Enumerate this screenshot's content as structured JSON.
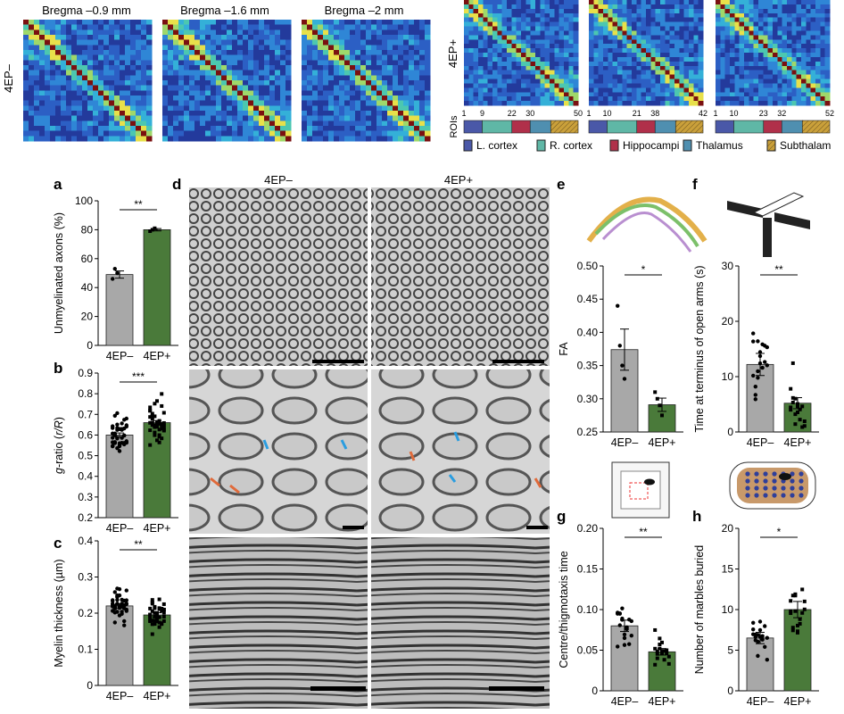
{
  "connectivity": {
    "left_titles": [
      "Bregma –0.9 mm",
      "Bregma –1.6 mm",
      "Bregma –2 mm"
    ],
    "left_row_label": "4EP–",
    "right_row_label": "4EP+",
    "rois_label": "ROIs",
    "roi_ticks": [
      [
        "1",
        "9",
        "22",
        "30",
        "50"
      ],
      [
        "1",
        "10",
        "21",
        "38",
        "42"
      ],
      [
        "1",
        "10",
        "23",
        "32",
        "52"
      ]
    ],
    "legend": [
      {
        "label": "L. cortex",
        "color": "#4a58a8"
      },
      {
        "label": "R. cortex",
        "color": "#5fb7a6"
      },
      {
        "label": "Hippocampi",
        "color": "#b0304a"
      },
      {
        "label": "Thalamus",
        "color": "#4f8fb0"
      },
      {
        "label": "Subthalam",
        "color": "#caa03a"
      }
    ]
  },
  "panel_letters": {
    "a": "a",
    "b": "b",
    "c": "c",
    "d": "d",
    "e": "e",
    "f": "f",
    "g": "g",
    "h": "h"
  },
  "em_panel": {
    "col_left": "4EP–",
    "col_right": "4EP+"
  },
  "chart_data": [
    {
      "id": "a",
      "type": "bar",
      "ylabel": "Unmyelinated axons (%)",
      "categories": [
        "4EP–",
        "4EP+"
      ],
      "values": [
        49,
        80
      ],
      "errors": [
        2.5,
        0.8
      ],
      "ylim": [
        0,
        100
      ],
      "yticks": [
        "0",
        "20",
        "40",
        "60",
        "80",
        "100"
      ],
      "significance": "**",
      "colors": [
        "#a8a8a8",
        "#4a7a3a"
      ],
      "points": [
        [
          46,
          53,
          50
        ],
        [
          79,
          80,
          81
        ]
      ]
    },
    {
      "id": "b",
      "type": "bar",
      "ylabel": "g-ratio (r/R)",
      "categories": [
        "4EP–",
        "4EP+"
      ],
      "values": [
        0.6,
        0.66
      ],
      "errors": [
        0.01,
        0.01
      ],
      "ylim": [
        0.2,
        0.9
      ],
      "yticks": [
        "0.2",
        "0.3",
        "0.4",
        "0.5",
        "0.6",
        "0.7",
        "0.8",
        "0.9"
      ],
      "significance": "***",
      "colors": [
        "#a8a8a8",
        "#4a7a3a"
      ]
    },
    {
      "id": "c",
      "type": "bar",
      "ylabel": "Myelin thickness (µm)",
      "categories": [
        "4EP–",
        "4EP+"
      ],
      "values": [
        0.22,
        0.195
      ],
      "errors": [
        0.006,
        0.006
      ],
      "ylim": [
        0,
        0.4
      ],
      "yticks": [
        "0",
        "0.1",
        "0.2",
        "0.3",
        "0.4"
      ],
      "significance": "**",
      "colors": [
        "#a8a8a8",
        "#4a7a3a"
      ]
    },
    {
      "id": "e",
      "type": "bar",
      "ylabel": "FA",
      "categories": [
        "4EP–",
        "4EP+"
      ],
      "values": [
        0.374,
        0.291
      ],
      "errors": [
        0.031,
        0.01
      ],
      "ylim": [
        0.25,
        0.5
      ],
      "yticks": [
        "0.25",
        "0.30",
        "0.35",
        "0.40",
        "0.45",
        "0.50"
      ],
      "significance": "*",
      "colors": [
        "#a8a8a8",
        "#4a7a3a"
      ],
      "points": [
        [
          0.44,
          0.38,
          0.35,
          0.33
        ],
        [
          0.31,
          0.3,
          0.29,
          0.275
        ]
      ]
    },
    {
      "id": "f",
      "type": "bar",
      "ylabel": "Time at terminus of open arms (s)",
      "categories": [
        "4EP–",
        "4EP+"
      ],
      "values": [
        12.2,
        5.2
      ],
      "errors": [
        2.0,
        1.0
      ],
      "ylim": [
        0,
        30
      ],
      "yticks": [
        "0",
        "10",
        "20",
        "30"
      ],
      "significance": "**",
      "colors": [
        "#a8a8a8",
        "#4a7a3a"
      ]
    },
    {
      "id": "g",
      "type": "bar",
      "ylabel": "Centre/thigmotaxis time",
      "categories": [
        "4EP–",
        "4EP+"
      ],
      "values": [
        0.08,
        0.048
      ],
      "errors": [
        0.007,
        0.004
      ],
      "ylim": [
        0,
        0.2
      ],
      "yticks": [
        "0",
        "0.05",
        "0.10",
        "0.15",
        "0.20"
      ],
      "significance": "**",
      "colors": [
        "#a8a8a8",
        "#4a7a3a"
      ]
    },
    {
      "id": "h",
      "type": "bar",
      "ylabel": "Number of marbles buried",
      "categories": [
        "4EP–",
        "4EP+"
      ],
      "values": [
        6.5,
        10
      ],
      "errors": [
        0.7,
        1.0
      ],
      "ylim": [
        0,
        20
      ],
      "yticks": [
        "0",
        "5",
        "10",
        "15",
        "20"
      ],
      "significance": "*",
      "colors": [
        "#a8a8a8",
        "#4a7a3a"
      ]
    }
  ]
}
